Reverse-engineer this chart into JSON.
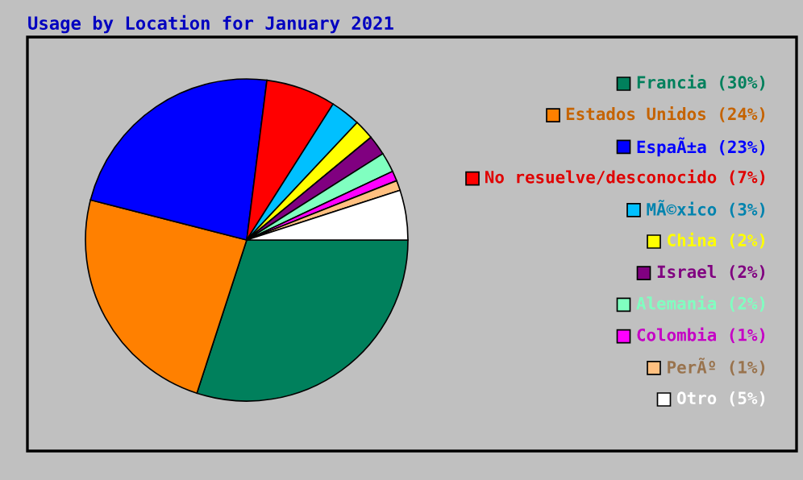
{
  "chart_data": {
    "type": "pie",
    "title": "Usage by Location for January 2021",
    "categories": [
      "Francia (30%)",
      "Estados Unidos (24%)",
      "EspaÃ±a (23%)",
      "No resuelve/desconocido (7%)",
      "MÃ©xico (3%)",
      "China (2%)",
      "Israel (2%)",
      "Alemania (2%)",
      "Colombia (1%)",
      "PerÃº (1%)",
      "Otro (5%)"
    ],
    "values": [
      30,
      24,
      23,
      7,
      3,
      2,
      2,
      2,
      1,
      1,
      5
    ],
    "colors": [
      "#00805c",
      "#ff8000",
      "#0000ff",
      "#ff0000",
      "#00c0ff",
      "#ffff00",
      "#800080",
      "#80ffc0",
      "#ff00ff",
      "#ffc080",
      "#ffffff"
    ],
    "legend": "right"
  }
}
